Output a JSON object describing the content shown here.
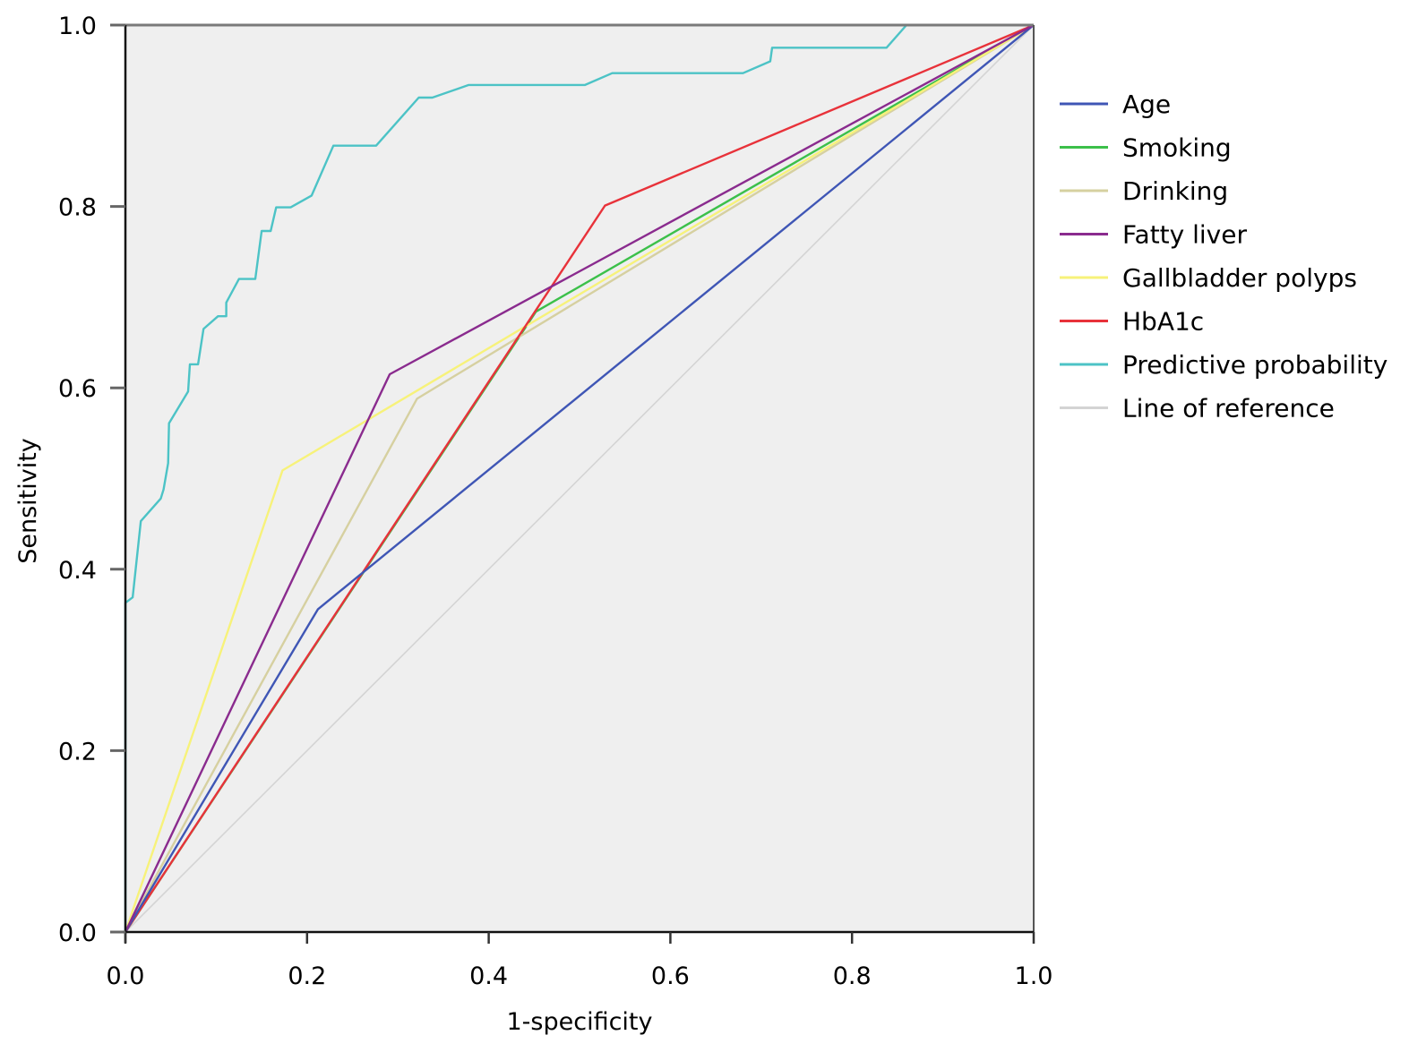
{
  "chart_data": {
    "type": "line",
    "title": "",
    "xlabel": "1-specificity",
    "ylabel": "Sensitivity",
    "xlim": [
      0,
      1
    ],
    "ylim": [
      0,
      1
    ],
    "x_ticks": [
      "0.0",
      "0.2",
      "0.4",
      "0.6",
      "0.8",
      "1.0"
    ],
    "y_ticks": [
      "0.0",
      "0.2",
      "0.4",
      "0.6",
      "0.8",
      "1.0"
    ],
    "grid": false,
    "legend_position": "right",
    "plot_background": "#efefef",
    "series": [
      {
        "name": "Age",
        "color": "#3f56b5",
        "points": [
          [
            0,
            0
          ],
          [
            0.212,
            0.356
          ],
          [
            1,
            1
          ]
        ]
      },
      {
        "name": "Smoking",
        "color": "#3cc04a",
        "points": [
          [
            0,
            0
          ],
          [
            0.452,
            0.684
          ],
          [
            1,
            1
          ]
        ]
      },
      {
        "name": "Drinking",
        "color": "#d6d0a0",
        "points": [
          [
            0,
            0
          ],
          [
            0.321,
            0.588
          ],
          [
            1,
            1
          ]
        ]
      },
      {
        "name": "Fatty liver",
        "color": "#8a2b8e",
        "points": [
          [
            0,
            0
          ],
          [
            0.291,
            0.615
          ],
          [
            1,
            1
          ]
        ]
      },
      {
        "name": "Gallbladder polyps",
        "color": "#f7f27a",
        "points": [
          [
            0,
            0
          ],
          [
            0.173,
            0.509
          ],
          [
            1,
            1
          ]
        ]
      },
      {
        "name": "HbA1c",
        "color": "#e8323a",
        "points": [
          [
            0,
            0
          ],
          [
            0.528,
            0.801
          ],
          [
            1,
            1
          ]
        ]
      },
      {
        "name": "Predictive probability",
        "color": "#4cc3c6",
        "points": [
          [
            0,
            0
          ],
          [
            0,
            0.363
          ],
          [
            0.008,
            0.369
          ],
          [
            0.017,
            0.453
          ],
          [
            0.039,
            0.478
          ],
          [
            0.042,
            0.488
          ],
          [
            0.047,
            0.517
          ],
          [
            0.048,
            0.561
          ],
          [
            0.069,
            0.596
          ],
          [
            0.071,
            0.626
          ],
          [
            0.08,
            0.626
          ],
          [
            0.086,
            0.665
          ],
          [
            0.102,
            0.679
          ],
          [
            0.111,
            0.679
          ],
          [
            0.111,
            0.694
          ],
          [
            0.125,
            0.72
          ],
          [
            0.143,
            0.72
          ],
          [
            0.15,
            0.773
          ],
          [
            0.16,
            0.773
          ],
          [
            0.166,
            0.799
          ],
          [
            0.182,
            0.799
          ],
          [
            0.205,
            0.812
          ],
          [
            0.229,
            0.867
          ],
          [
            0.276,
            0.867
          ],
          [
            0.323,
            0.92
          ],
          [
            0.338,
            0.92
          ],
          [
            0.378,
            0.934
          ],
          [
            0.506,
            0.934
          ],
          [
            0.536,
            0.947
          ],
          [
            0.68,
            0.947
          ],
          [
            0.71,
            0.96
          ],
          [
            0.712,
            0.975
          ],
          [
            0.838,
            0.975
          ],
          [
            0.86,
            1
          ],
          [
            1,
            1
          ]
        ]
      },
      {
        "name": "Line of reference",
        "color": "#d4d4d4",
        "points": [
          [
            0,
            0
          ],
          [
            1,
            1
          ]
        ]
      }
    ]
  }
}
